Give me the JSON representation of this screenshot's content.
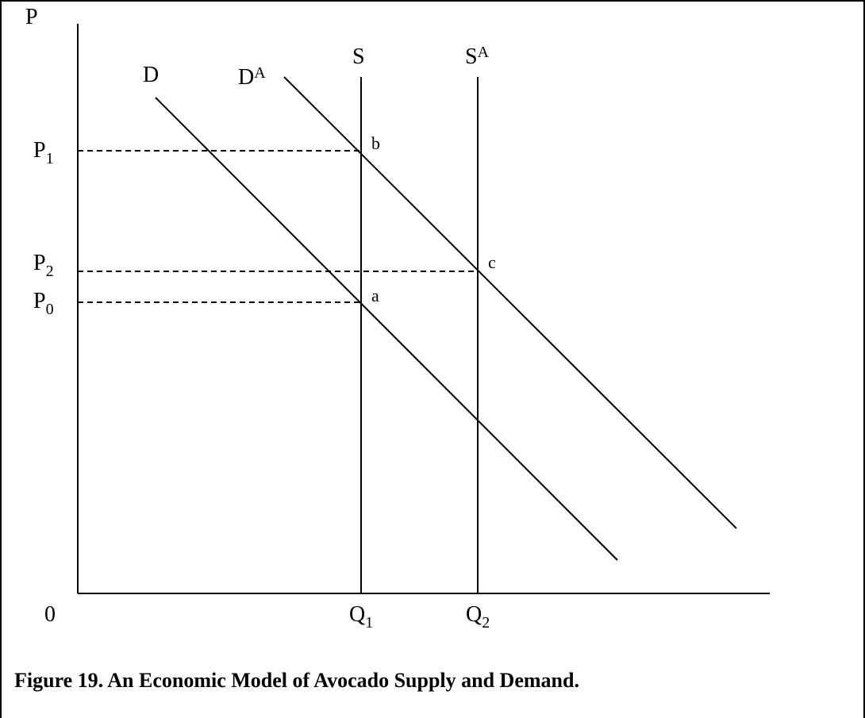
{
  "axes": {
    "y_label": "P",
    "origin": "0"
  },
  "price_levels": [
    {
      "text": "P",
      "sub": "1"
    },
    {
      "text": "P",
      "sub": "2"
    },
    {
      "text": "P",
      "sub": "0"
    }
  ],
  "quantities": [
    {
      "text": "Q",
      "sub": "1"
    },
    {
      "text": "Q",
      "sub": "2"
    }
  ],
  "curves": [
    {
      "text": "D"
    },
    {
      "text": "D",
      "sup": "A"
    },
    {
      "text": "S"
    },
    {
      "text": "S",
      "sup": "A"
    }
  ],
  "points": [
    "b",
    "c",
    "a"
  ],
  "caption": "Figure 19.  An Economic Model of Avocado Supply and Demand."
}
